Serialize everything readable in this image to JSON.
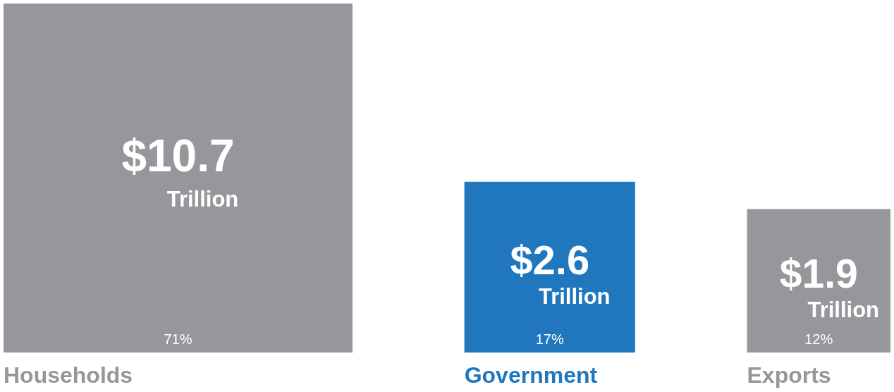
{
  "chart_data": {
    "type": "other",
    "categories": [
      "Households",
      "Government",
      "Exports"
    ],
    "series": [
      {
        "values": [
          10.7,
          2.6,
          1.9
        ],
        "value_labels": [
          "$10.7 Trillion",
          "$2.6 Trillion",
          "$1.9 Trillion"
        ],
        "colors": [
          "#96979b",
          "#2177bd",
          "#96979b"
        ]
      },
      {
        "values": [
          71,
          17,
          12
        ],
        "value_labels": [
          "71%",
          "17%",
          "12%"
        ],
        "colors": [
          "#96979b",
          "#2177bd",
          "#96979b"
        ]
      }
    ]
  }
}
